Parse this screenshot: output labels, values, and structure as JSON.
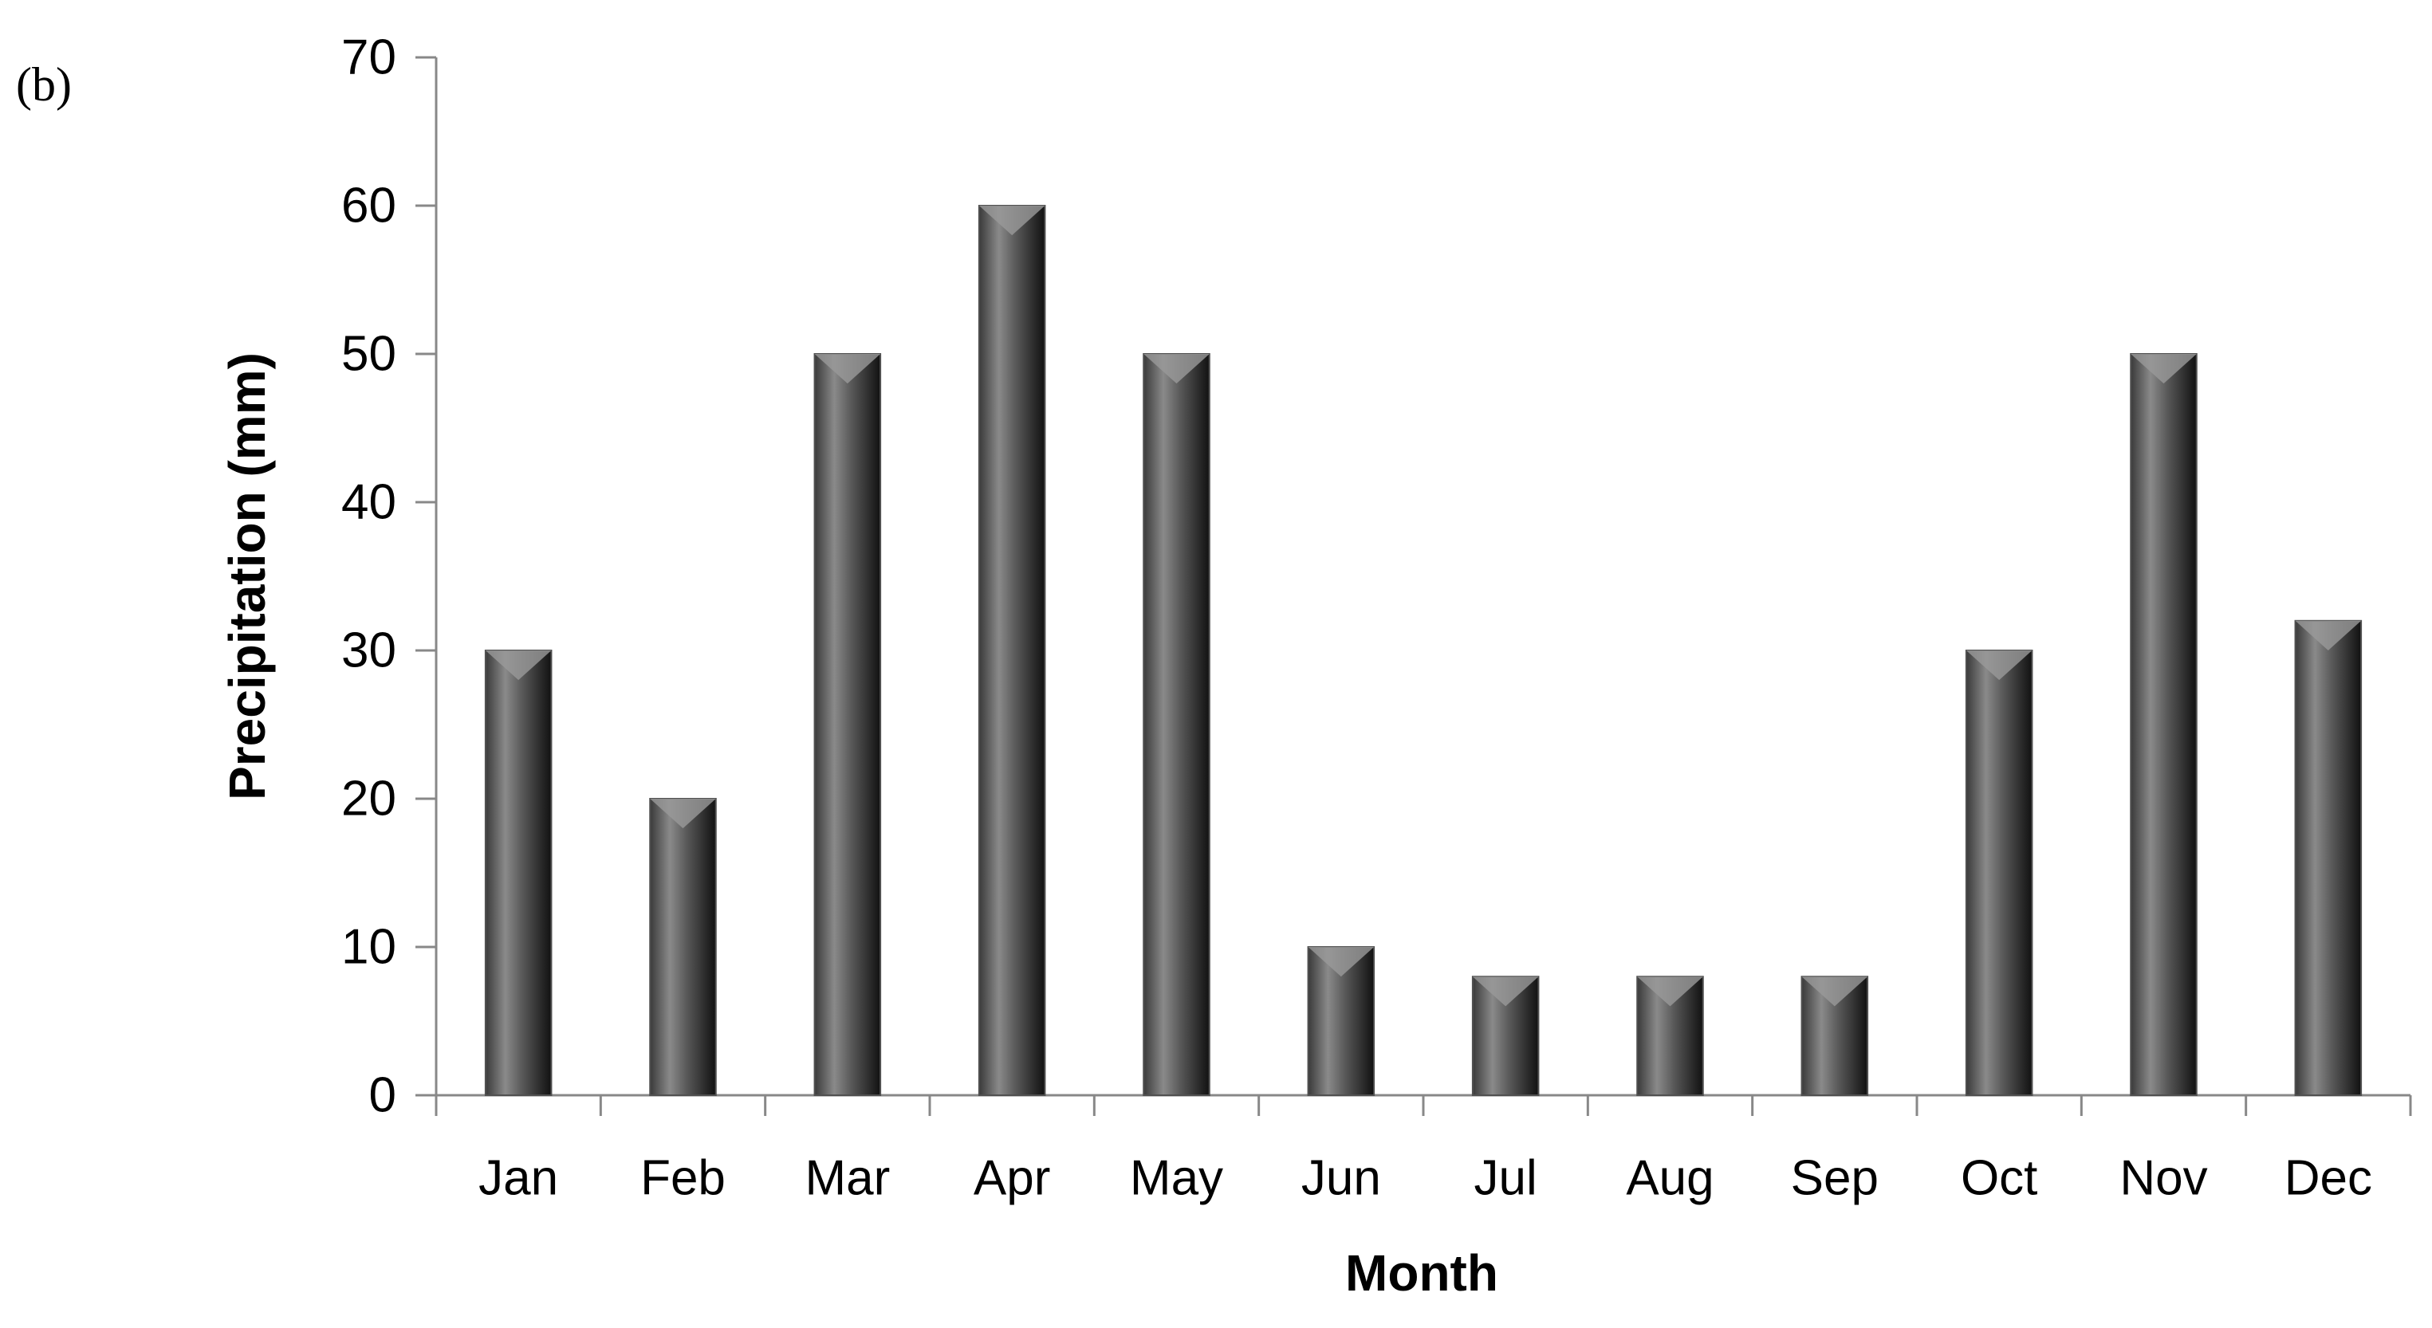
{
  "chart_data": {
    "type": "bar",
    "panel_label": "(b)",
    "x_label": "Month",
    "y_label": "Precipitation (mm)",
    "categories": [
      "Jan",
      "Feb",
      "Mar",
      "Apr",
      "May",
      "Jun",
      "Jul",
      "Aug",
      "Sep",
      "Oct",
      "Nov",
      "Dec"
    ],
    "values": [
      30,
      20,
      50,
      60,
      50,
      10,
      8,
      8,
      8,
      30,
      50,
      32
    ],
    "color": "#505050",
    "ylim": [
      0,
      70
    ],
    "yticks": [
      0,
      10,
      20,
      30,
      40,
      50,
      60,
      70
    ],
    "grid": false
  }
}
